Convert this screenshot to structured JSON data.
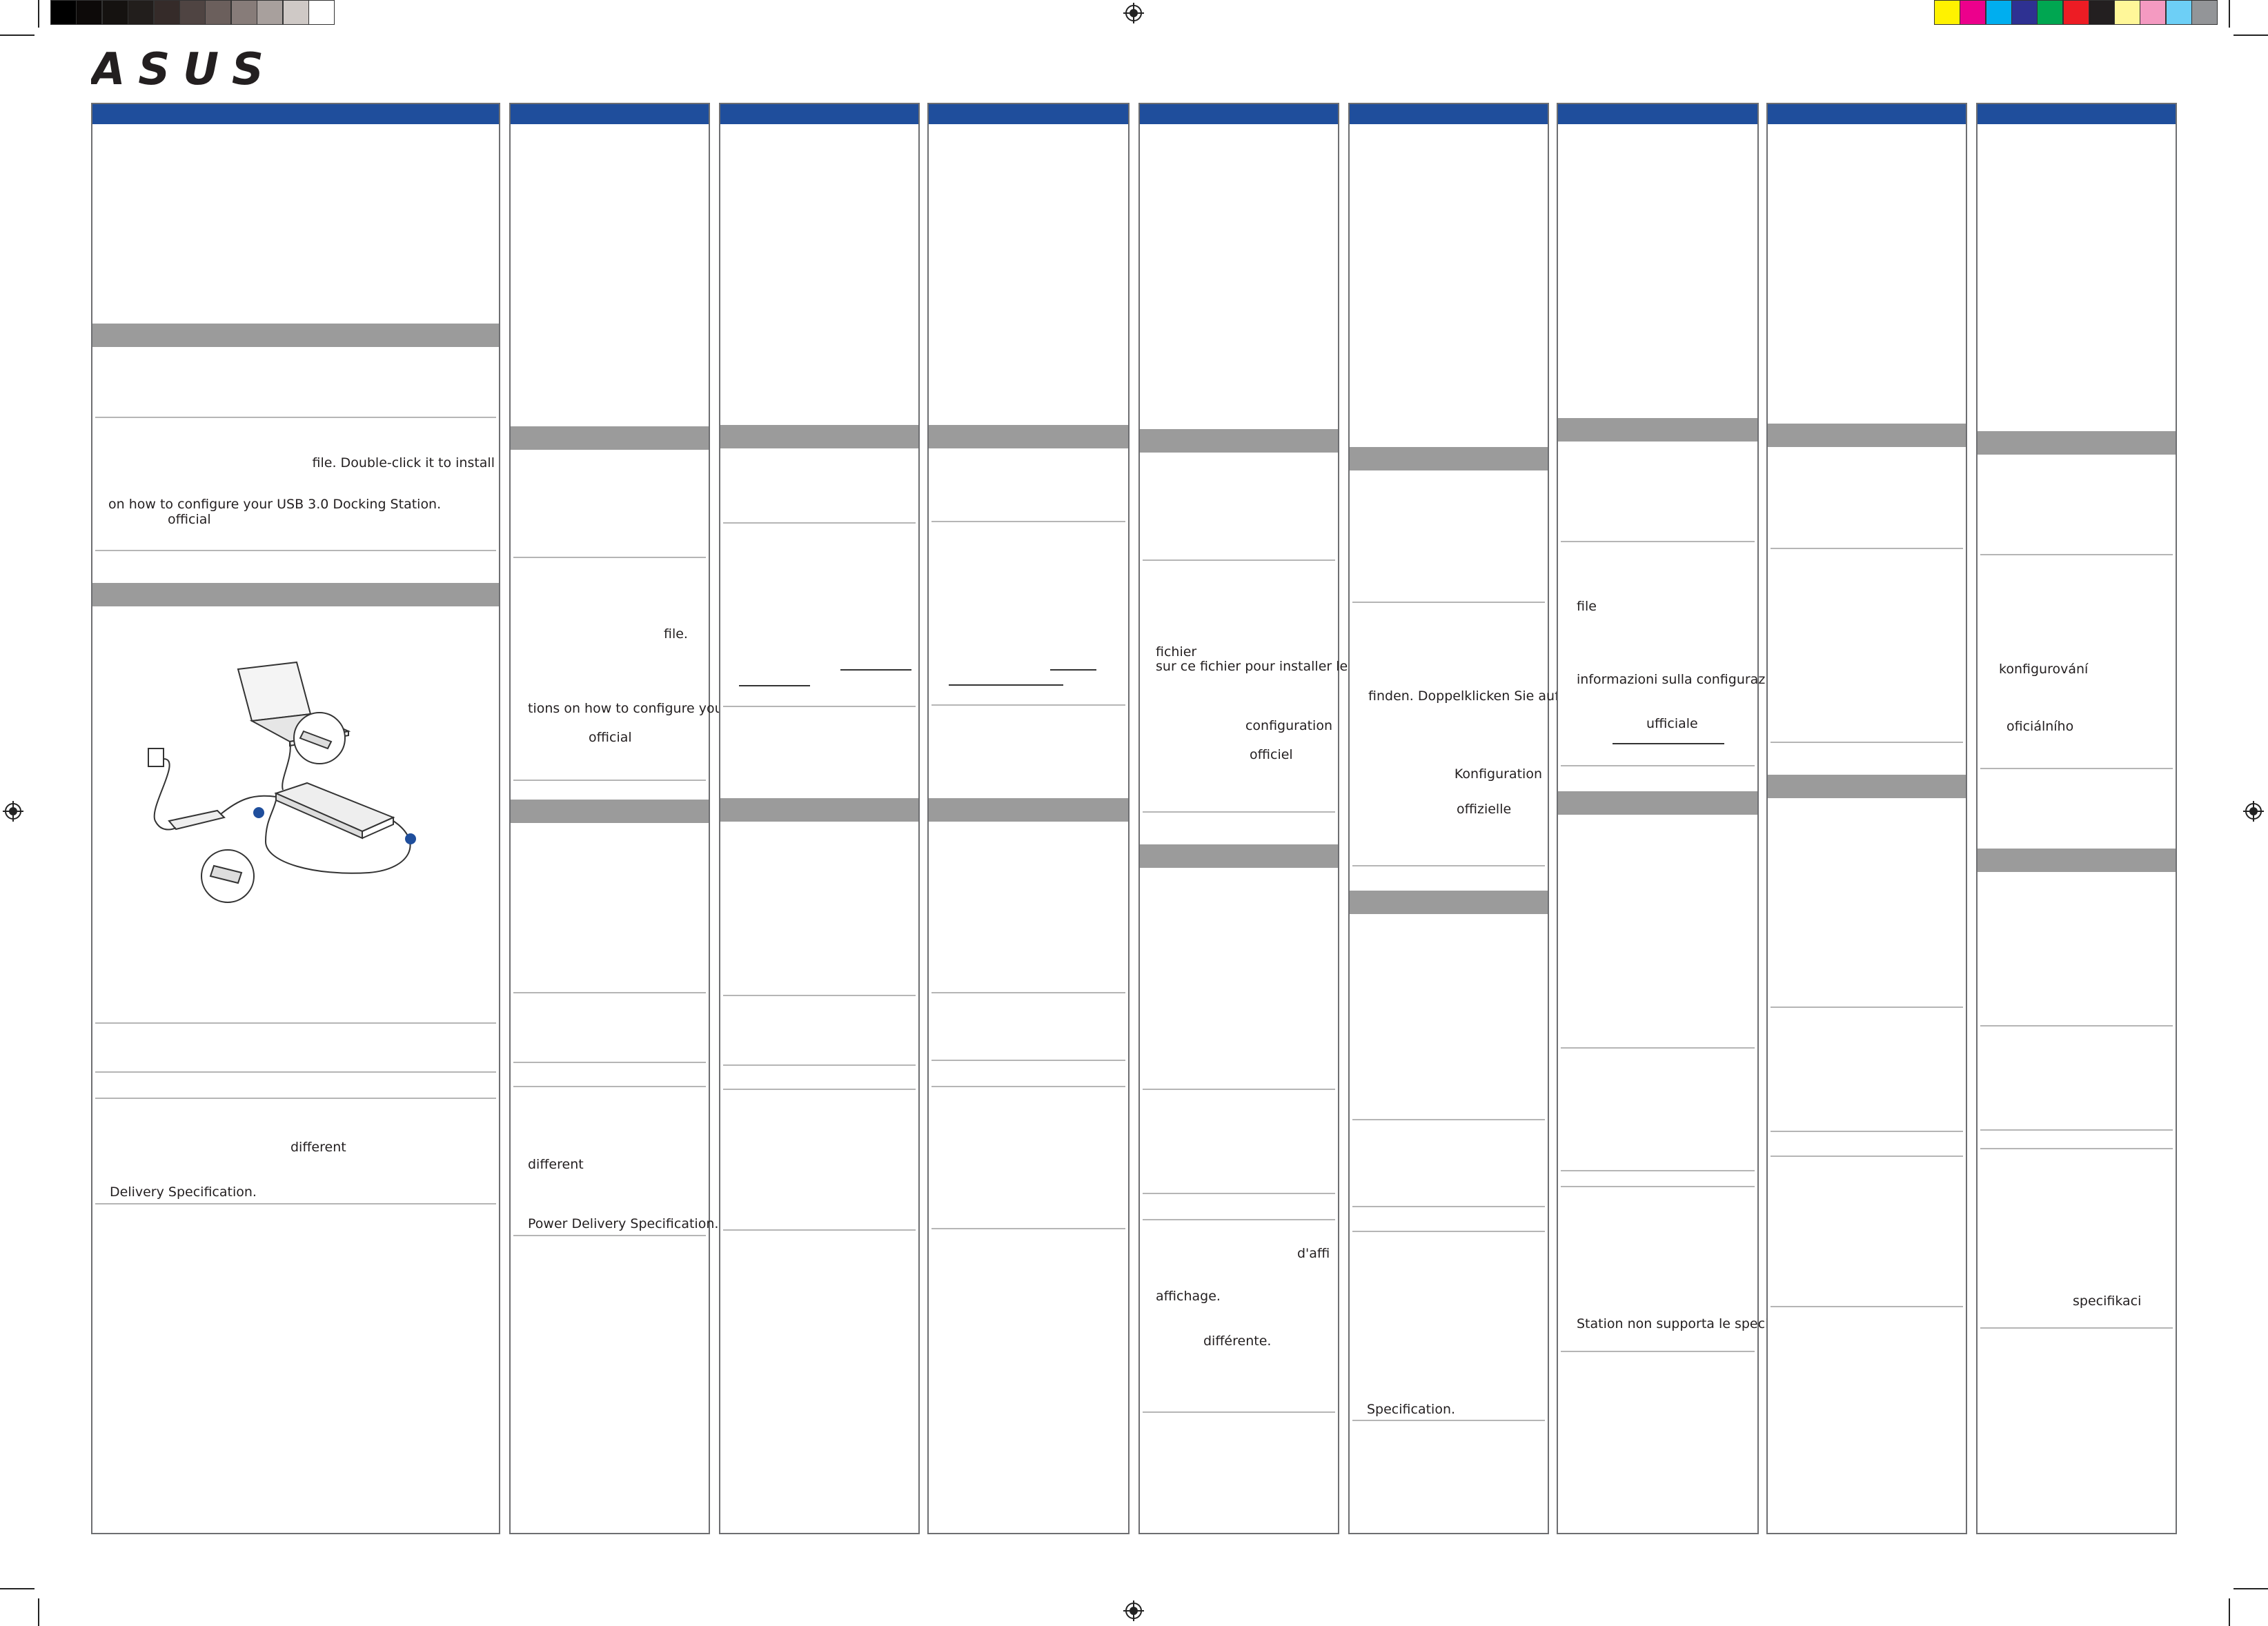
{
  "logo": {
    "text": "ASUS",
    "brand_color": "#231f20"
  },
  "colors": {
    "panel_header": "#1f4e9c",
    "section_bar": "#9b9b9b",
    "illustration_dot": "#1f4e9c",
    "grayscale_bar": [
      "#000000",
      "#0d0a09",
      "#151210",
      "#221e1c",
      "#352b29",
      "#4f4442",
      "#6b5f5c",
      "#877c79",
      "#a8a09d",
      "#cfc9c6",
      "#ffffff"
    ],
    "process_bar": [
      "#fff200",
      "#ec008c",
      "#00aeef",
      "#2e3192",
      "#00a651",
      "#ed1c24",
      "#231f20",
      "#fff799",
      "#f49ac1",
      "#6dcff6",
      "#939598"
    ]
  },
  "panels": [
    {
      "language": "English",
      "texts": [
        "file. Double-click it to install",
        "on how to configure your USB 3.0 Docking Station.",
        "official",
        "different",
        "Delivery Specification."
      ]
    },
    {
      "language": "English-2",
      "texts": [
        "file.",
        "tions on how to configure your",
        "official",
        "different",
        "Power Delivery Specification."
      ]
    },
    {
      "language": "col-3",
      "texts": []
    },
    {
      "language": "col-4",
      "texts": []
    },
    {
      "language": "French",
      "texts": [
        "fichier",
        "sur ce fichier pour installer le",
        "configuration",
        "officiel",
        "d'affi",
        "affichage.",
        "différente."
      ]
    },
    {
      "language": "German",
      "texts": [
        "finden. Doppelklicken Sie auf",
        "Konfiguration",
        "offizielle",
        "Specification."
      ]
    },
    {
      "language": "Italian",
      "texts": [
        "file",
        "informazioni sulla configurazione",
        "ufficiale",
        "Station non supporta le specifiche"
      ]
    },
    {
      "language": "col-8",
      "texts": []
    },
    {
      "language": "Czech",
      "texts": [
        "konfigurování",
        "oficiálního",
        "specifikaci"
      ]
    }
  ],
  "illustration": {
    "icon": "laptop-docking-station-connection-diagram"
  }
}
